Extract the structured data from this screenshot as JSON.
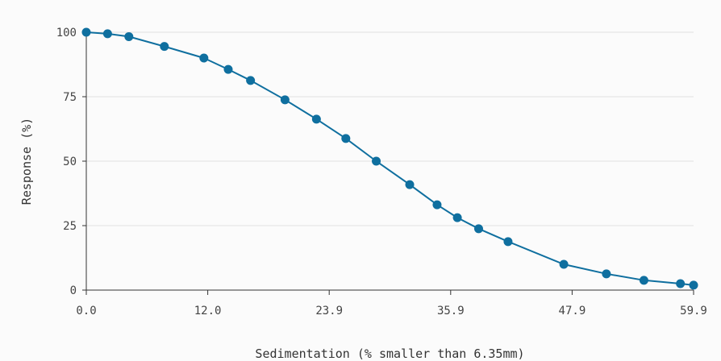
{
  "chart_data": {
    "type": "line",
    "title": "",
    "xlabel": "Sedimentation (% smaller than 6.35mm)",
    "ylabel": "Response (%)",
    "xlim": [
      0.0,
      59.9
    ],
    "ylim": [
      0,
      100
    ],
    "x_tick_labels": [
      "0.0",
      "12.0",
      "23.9",
      "35.9",
      "47.9",
      "59.9"
    ],
    "x_tick_values": [
      0.0,
      11.98,
      23.96,
      35.94,
      47.92,
      59.9
    ],
    "y_tick_labels": [
      "0",
      "25",
      "50",
      "75",
      "100"
    ],
    "y_tick_values": [
      0,
      25,
      50,
      75,
      100
    ],
    "grid": "horizontal",
    "legend": "none",
    "series": [
      {
        "color": "#0f6f9f",
        "points": [
          {
            "x": 0.0,
            "y": 100.0
          },
          {
            "x": 2.1,
            "y": 99.4
          },
          {
            "x": 4.2,
            "y": 98.3
          },
          {
            "x": 7.7,
            "y": 94.5
          },
          {
            "x": 11.6,
            "y": 90.0
          },
          {
            "x": 14.0,
            "y": 85.6
          },
          {
            "x": 16.2,
            "y": 81.3
          },
          {
            "x": 19.6,
            "y": 73.8
          },
          {
            "x": 22.7,
            "y": 66.3
          },
          {
            "x": 25.6,
            "y": 58.8
          },
          {
            "x": 28.6,
            "y": 50.0
          },
          {
            "x": 31.9,
            "y": 40.9
          },
          {
            "x": 34.6,
            "y": 33.1
          },
          {
            "x": 36.6,
            "y": 28.1
          },
          {
            "x": 38.7,
            "y": 23.8
          },
          {
            "x": 41.6,
            "y": 18.8
          },
          {
            "x": 47.1,
            "y": 10.0
          },
          {
            "x": 51.3,
            "y": 6.3
          },
          {
            "x": 55.0,
            "y": 3.8
          },
          {
            "x": 58.6,
            "y": 2.5
          },
          {
            "x": 59.9,
            "y": 1.9
          }
        ]
      }
    ]
  }
}
